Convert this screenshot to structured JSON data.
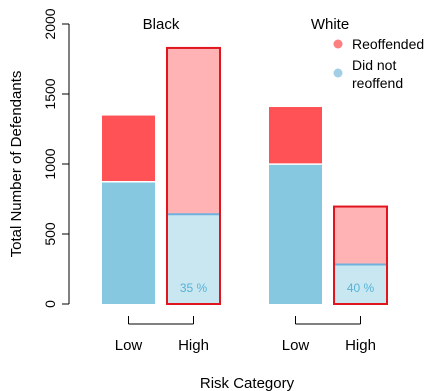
{
  "chart_data": {
    "type": "bar",
    "ylabel": "Total Number of Defendants",
    "xlabel": "Risk Category",
    "ylim": [
      0,
      2000
    ],
    "yticks": [
      0,
      500,
      1000,
      1500,
      2000
    ],
    "ytick_labels": [
      "0",
      "500",
      "1000",
      "1500",
      "2000"
    ],
    "groups": [
      {
        "name": "Black",
        "bars": [
          {
            "category": "Low",
            "not_reoffended": 873,
            "reoffended": 473,
            "pct_label": ""
          },
          {
            "category": "High",
            "not_reoffended": 641,
            "reoffended": 1188,
            "pct_label": "35 %"
          }
        ]
      },
      {
        "name": "White",
        "bars": [
          {
            "category": "Low",
            "not_reoffended": 999,
            "reoffended": 408,
            "pct_label": ""
          },
          {
            "category": "High",
            "not_reoffended": 282,
            "reoffended": 414,
            "pct_label": "40 %"
          }
        ]
      }
    ],
    "legend": {
      "placement": "top-right",
      "entries": [
        {
          "label": "Reoffended",
          "color": "#fe7f7f"
        },
        {
          "label_lines": [
            "Did not",
            "reoffend"
          ],
          "color": "#a3cfe6"
        }
      ]
    },
    "colors": {
      "reoffended": "#ff5257",
      "reoffended_highlight": "#ffb3b5",
      "not_reoffended": "#86c8e0",
      "not_reoffended_highlight": "#c9e7f1",
      "highlight_border": "#e0151d",
      "pct_text": "#55b2d6"
    }
  }
}
